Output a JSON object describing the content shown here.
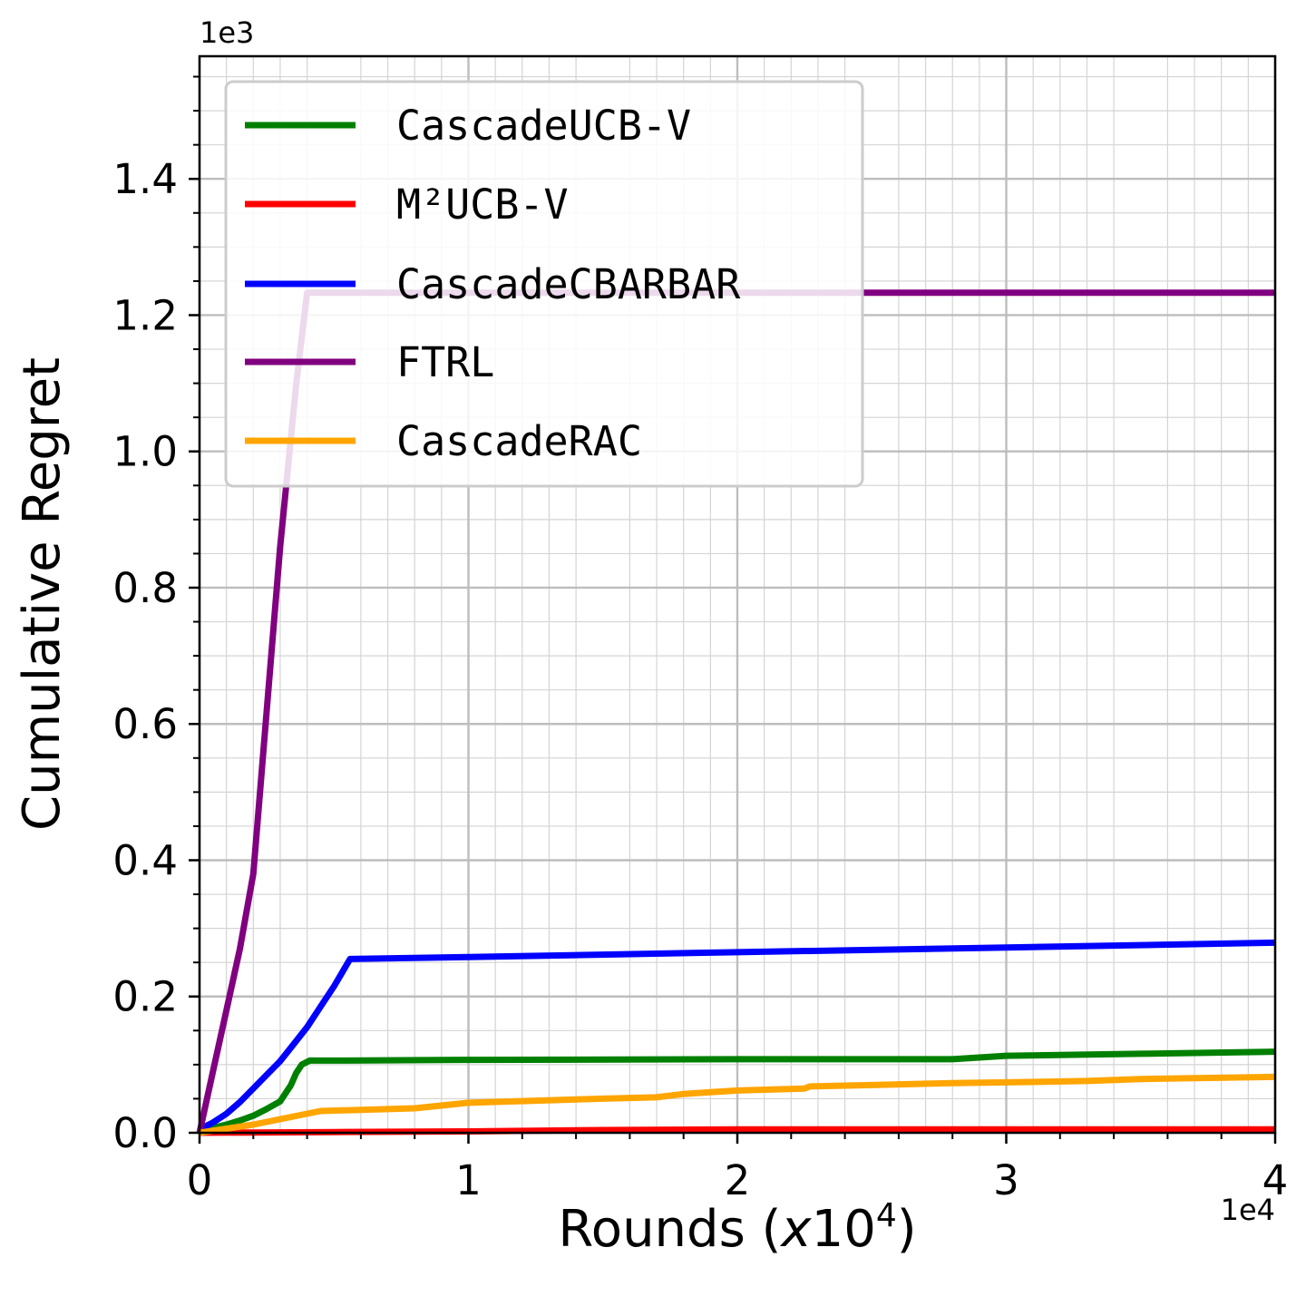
{
  "chart_data": {
    "type": "line",
    "xlabel_main": "Rounds (",
    "xlabel_var": "x",
    "xlabel_base": "10",
    "xlabel_exp": "4",
    "xlabel_close": ")",
    "ylabel": "Cumulative Regret",
    "x_offset_label": "1e4",
    "y_offset_label": "1e3",
    "xlim": [
      0,
      4
    ],
    "ylim": [
      0,
      1.58
    ],
    "xticks": [
      0,
      1,
      2,
      3,
      4
    ],
    "xtick_labels": [
      "0",
      "1",
      "2",
      "3",
      "4"
    ],
    "yticks": [
      0.0,
      0.2,
      0.4,
      0.6,
      0.8,
      1.0,
      1.2,
      1.4
    ],
    "ytick_labels": [
      "0.0",
      "0.2",
      "0.4",
      "0.6",
      "0.8",
      "1.0",
      "1.2",
      "1.4"
    ],
    "grid": true,
    "minor_grid": true,
    "legend_position": "upper-left",
    "series": [
      {
        "name": "CascadeUCB-V",
        "color": "#008000",
        "x": [
          0,
          0.05,
          0.1,
          0.15,
          0.2,
          0.25,
          0.3,
          0.34,
          0.36,
          0.38,
          0.41,
          0.5,
          1.0,
          2.0,
          2.8,
          3.0,
          3.5,
          4.0
        ],
        "y": [
          0.003,
          0.007,
          0.012,
          0.018,
          0.025,
          0.035,
          0.046,
          0.07,
          0.088,
          0.1,
          0.106,
          0.106,
          0.107,
          0.108,
          0.108,
          0.113,
          0.116,
          0.119
        ]
      },
      {
        "name": "M²UCB-V",
        "color": "#ff0000",
        "x": [
          0,
          0.5,
          1.0,
          1.5,
          2.0,
          3.0,
          4.0
        ],
        "y": [
          0.0,
          0.001,
          0.002,
          0.004,
          0.005,
          0.005,
          0.005
        ]
      },
      {
        "name": "CascadeCBARBAR",
        "color": "#0000ff",
        "x": [
          0,
          0.05,
          0.1,
          0.15,
          0.2,
          0.25,
          0.3,
          0.35,
          0.4,
          0.45,
          0.5,
          0.56,
          1.0,
          2.0,
          3.0,
          4.0
        ],
        "y": [
          0.005,
          0.015,
          0.028,
          0.045,
          0.065,
          0.085,
          0.105,
          0.13,
          0.155,
          0.185,
          0.215,
          0.255,
          0.258,
          0.265,
          0.272,
          0.279
        ]
      },
      {
        "name": "FTRL",
        "color": "#800080",
        "x": [
          0,
          0.05,
          0.1,
          0.15,
          0.2,
          0.25,
          0.3,
          0.33,
          0.36,
          0.4,
          1.0,
          2.0,
          3.0,
          4.0
        ],
        "y": [
          0.0,
          0.09,
          0.18,
          0.27,
          0.38,
          0.62,
          0.86,
          0.98,
          1.1,
          1.233,
          1.233,
          1.233,
          1.233,
          1.233
        ]
      },
      {
        "name": "CascadeRAC",
        "color": "#ffa500",
        "x": [
          0,
          0.1,
          0.2,
          0.3,
          0.45,
          0.8,
          1.0,
          1.5,
          1.7,
          1.8,
          2.0,
          2.25,
          2.27,
          2.5,
          2.8,
          3.0,
          3.3,
          3.5,
          4.0
        ],
        "y": [
          0.0,
          0.006,
          0.012,
          0.02,
          0.032,
          0.036,
          0.044,
          0.05,
          0.052,
          0.057,
          0.062,
          0.065,
          0.068,
          0.07,
          0.073,
          0.074,
          0.076,
          0.079,
          0.082
        ]
      }
    ]
  }
}
